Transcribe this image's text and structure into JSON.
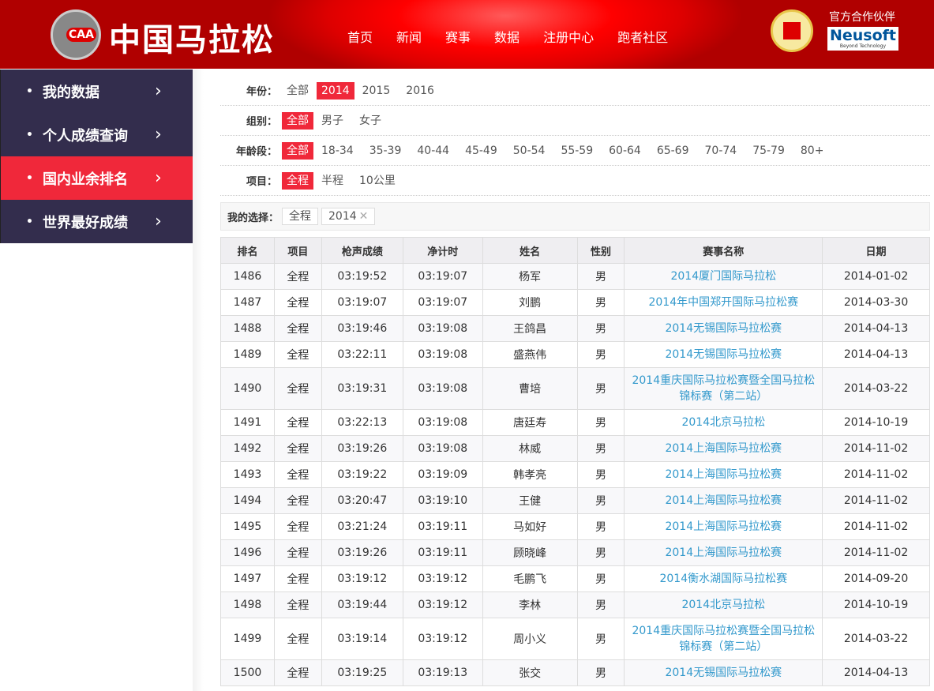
{
  "header": {
    "logo_text": "CAA",
    "site_title": "中国马拉松",
    "nav": [
      "首页",
      "新闻",
      "赛事",
      "数据",
      "注册中心",
      "跑者社区"
    ],
    "partner_label": "官方合作伙伴",
    "partner_name": "Neusoft",
    "partner_tagline": "Beyond Technology",
    "brand_color": "#e60012"
  },
  "sidebar": {
    "items": [
      {
        "label": "我的数据",
        "active": false
      },
      {
        "label": "个人成绩查询",
        "active": false
      },
      {
        "label": "国内业余排名",
        "active": true
      },
      {
        "label": "世界最好成绩",
        "active": false
      }
    ],
    "colors": {
      "normal": "#332d4d",
      "active": "#f0283a"
    }
  },
  "filters": [
    {
      "label": "年份：",
      "options": [
        "全部",
        "2014",
        "2015",
        "2016"
      ],
      "selected": "2014"
    },
    {
      "label": "组别：",
      "options": [
        "全部",
        "男子",
        "女子"
      ],
      "selected": "全部"
    },
    {
      "label": "年龄段：",
      "options": [
        "全部",
        "18-34",
        "35-39",
        "40-44",
        "45-49",
        "50-54",
        "55-59",
        "60-64",
        "65-69",
        "70-74",
        "75-79",
        "80+"
      ],
      "selected": "全部"
    },
    {
      "label": "项目：",
      "options": [
        "全程",
        "半程",
        "10公里"
      ],
      "selected": "全程"
    }
  ],
  "selection": {
    "label": "我的选择：",
    "chips": [
      {
        "text": "全程",
        "removable": false
      },
      {
        "text": "2014",
        "removable": true
      }
    ]
  },
  "table": {
    "headers": [
      "排名",
      "项目",
      "枪声成绩",
      "净计时",
      "姓名",
      "性别",
      "赛事名称",
      "日期"
    ],
    "rows": [
      [
        "1486",
        "全程",
        "03:19:52",
        "03:19:07",
        "杨军",
        "男",
        "2014厦门国际马拉松",
        "2014-01-02"
      ],
      [
        "1487",
        "全程",
        "03:19:07",
        "03:19:07",
        "刘鹏",
        "男",
        "2014年中国郑开国际马拉松赛",
        "2014-03-30"
      ],
      [
        "1488",
        "全程",
        "03:19:46",
        "03:19:08",
        "王鸽昌",
        "男",
        "2014无锡国际马拉松赛",
        "2014-04-13"
      ],
      [
        "1489",
        "全程",
        "03:22:11",
        "03:19:08",
        "盛燕伟",
        "男",
        "2014无锡国际马拉松赛",
        "2014-04-13"
      ],
      [
        "1490",
        "全程",
        "03:19:31",
        "03:19:08",
        "曹培",
        "男",
        "2014重庆国际马拉松赛暨全国马拉松锦标赛（第二站）",
        "2014-03-22"
      ],
      [
        "1491",
        "全程",
        "03:22:13",
        "03:19:08",
        "唐廷寿",
        "男",
        "2014北京马拉松",
        "2014-10-19"
      ],
      [
        "1492",
        "全程",
        "03:19:26",
        "03:19:08",
        "林威",
        "男",
        "2014上海国际马拉松赛",
        "2014-11-02"
      ],
      [
        "1493",
        "全程",
        "03:19:22",
        "03:19:09",
        "韩孝亮",
        "男",
        "2014上海国际马拉松赛",
        "2014-11-02"
      ],
      [
        "1494",
        "全程",
        "03:20:47",
        "03:19:10",
        "王健",
        "男",
        "2014上海国际马拉松赛",
        "2014-11-02"
      ],
      [
        "1495",
        "全程",
        "03:21:24",
        "03:19:11",
        "马如好",
        "男",
        "2014上海国际马拉松赛",
        "2014-11-02"
      ],
      [
        "1496",
        "全程",
        "03:19:26",
        "03:19:11",
        "顾晓峰",
        "男",
        "2014上海国际马拉松赛",
        "2014-11-02"
      ],
      [
        "1497",
        "全程",
        "03:19:12",
        "03:19:12",
        "毛鹏飞",
        "男",
        "2014衡水湖国际马拉松赛",
        "2014-09-20"
      ],
      [
        "1498",
        "全程",
        "03:19:44",
        "03:19:12",
        "李林",
        "男",
        "2014北京马拉松",
        "2014-10-19"
      ],
      [
        "1499",
        "全程",
        "03:19:14",
        "03:19:12",
        "周小义",
        "男",
        "2014重庆国际马拉松赛暨全国马拉松锦标赛（第二站）",
        "2014-03-22"
      ],
      [
        "1500",
        "全程",
        "03:19:25",
        "03:19:13",
        "张交",
        "男",
        "2014无锡国际马拉松赛",
        "2014-04-13"
      ]
    ]
  }
}
